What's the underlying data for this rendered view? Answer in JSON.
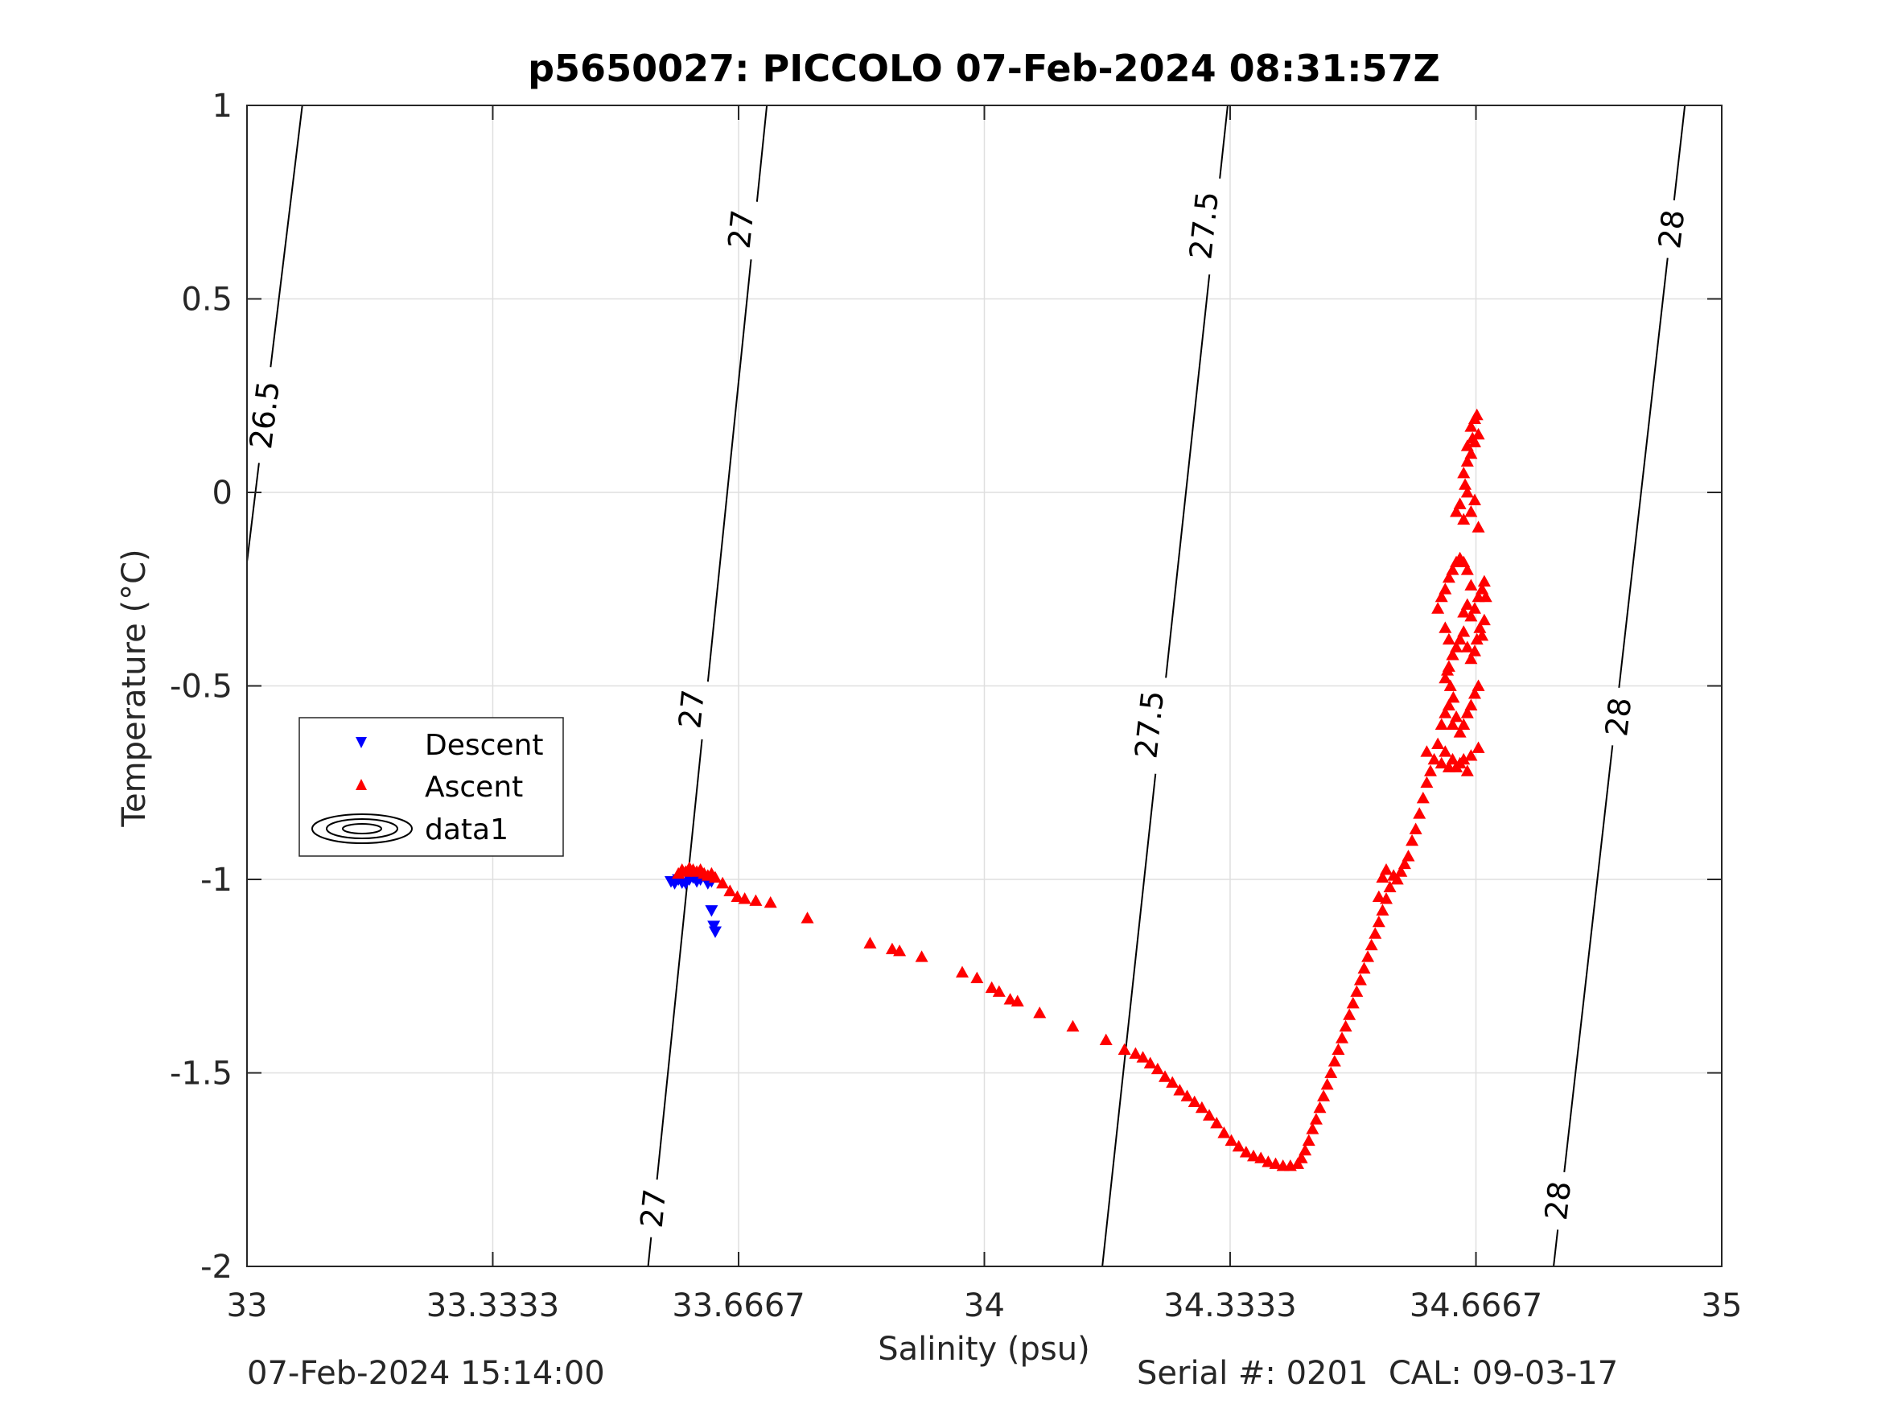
{
  "chart_data": {
    "type": "scatter",
    "title": "p5650027: PICCOLO 07-Feb-2024 08:31:57Z",
    "xlabel": "Salinity (psu)",
    "ylabel": "Temperature (°C)",
    "xlim": [
      33,
      35
    ],
    "ylim": [
      -2,
      1
    ],
    "xticks": [
      33,
      33.3333,
      33.6667,
      34,
      34.3333,
      34.6667,
      35
    ],
    "xtick_labels": [
      "33",
      "33.3333",
      "33.6667",
      "34",
      "34.3333",
      "34.6667",
      "35"
    ],
    "yticks": [
      -2,
      -1.5,
      -1,
      -0.5,
      0,
      0.5,
      1
    ],
    "ytick_labels": [
      "-2",
      "-1.5",
      "-1",
      "-0.5",
      "0",
      "0.5",
      "1"
    ],
    "grid": true,
    "legend_position": "middle-left",
    "legend": [
      "Descent",
      "Ascent",
      "data1"
    ],
    "contours": [
      {
        "level": "26.5",
        "points": [
          [
            33.0,
            -0.18
          ],
          [
            33.075,
            1.0
          ]
        ],
        "labels": [
          {
            "x": 33.024,
            "y": 0.2
          }
        ]
      },
      {
        "level": "27",
        "points": [
          [
            33.544,
            -2.0
          ],
          [
            33.705,
            1.0
          ]
        ],
        "labels": [
          {
            "x": 33.551,
            "y": -1.85
          },
          {
            "x": 33.603,
            "y": -0.56
          },
          {
            "x": 33.67,
            "y": 0.68
          }
        ]
      },
      {
        "level": "27.5",
        "points": [
          [
            34.16,
            -2.0
          ],
          [
            34.33,
            1.0
          ]
        ],
        "labels": [
          {
            "x": 34.224,
            "y": -0.6
          },
          {
            "x": 34.298,
            "y": 0.69
          }
        ]
      },
      {
        "level": "28",
        "points": [
          [
            34.772,
            -2.0
          ],
          [
            34.95,
            1.0
          ]
        ],
        "labels": [
          {
            "x": 34.778,
            "y": -1.83
          },
          {
            "x": 34.86,
            "y": -0.58
          },
          {
            "x": 34.932,
            "y": 0.68
          }
        ]
      }
    ],
    "series": [
      {
        "name": "Descent",
        "marker": "triangle-down",
        "color": "#0000ff",
        "points": [
          [
            33.575,
            -1.005
          ],
          [
            33.58,
            -1.01
          ],
          [
            33.585,
            -1.0
          ],
          [
            33.59,
            -1.008
          ],
          [
            33.595,
            -1.01
          ],
          [
            33.6,
            -1.0
          ],
          [
            33.605,
            -0.995
          ],
          [
            33.61,
            -1.005
          ],
          [
            33.615,
            -1.0
          ],
          [
            33.625,
            -1.01
          ],
          [
            33.63,
            -1.005
          ],
          [
            33.63,
            -1.08
          ],
          [
            33.633,
            -1.12
          ],
          [
            33.635,
            -1.135
          ]
        ]
      },
      {
        "name": "Ascent",
        "marker": "triangle-up",
        "color": "#ff0000",
        "points": [
          [
            33.585,
            -0.985
          ],
          [
            33.59,
            -0.975
          ],
          [
            33.595,
            -0.98
          ],
          [
            33.6,
            -0.97
          ],
          [
            33.605,
            -0.975
          ],
          [
            33.61,
            -0.98
          ],
          [
            33.615,
            -0.975
          ],
          [
            33.62,
            -0.985
          ],
          [
            33.625,
            -0.99
          ],
          [
            33.63,
            -0.985
          ],
          [
            33.635,
            -0.995
          ],
          [
            33.645,
            -1.01
          ],
          [
            33.655,
            -1.03
          ],
          [
            33.665,
            -1.045
          ],
          [
            33.675,
            -1.05
          ],
          [
            33.69,
            -1.055
          ],
          [
            33.71,
            -1.06
          ],
          [
            33.76,
            -1.1
          ],
          [
            33.845,
            -1.165
          ],
          [
            33.875,
            -1.18
          ],
          [
            33.885,
            -1.185
          ],
          [
            33.915,
            -1.2
          ],
          [
            33.97,
            -1.24
          ],
          [
            33.99,
            -1.255
          ],
          [
            34.01,
            -1.28
          ],
          [
            34.02,
            -1.29
          ],
          [
            34.035,
            -1.31
          ],
          [
            34.045,
            -1.315
          ],
          [
            34.075,
            -1.345
          ],
          [
            34.12,
            -1.38
          ],
          [
            34.165,
            -1.415
          ],
          [
            34.19,
            -1.44
          ],
          [
            34.205,
            -1.45
          ],
          [
            34.215,
            -1.46
          ],
          [
            34.225,
            -1.475
          ],
          [
            34.235,
            -1.49
          ],
          [
            34.245,
            -1.51
          ],
          [
            34.255,
            -1.525
          ],
          [
            34.265,
            -1.545
          ],
          [
            34.275,
            -1.56
          ],
          [
            34.285,
            -1.575
          ],
          [
            34.295,
            -1.59
          ],
          [
            34.305,
            -1.61
          ],
          [
            34.315,
            -1.63
          ],
          [
            34.325,
            -1.655
          ],
          [
            34.335,
            -1.675
          ],
          [
            34.345,
            -1.69
          ],
          [
            34.355,
            -1.705
          ],
          [
            34.365,
            -1.715
          ],
          [
            34.375,
            -1.72
          ],
          [
            34.385,
            -1.73
          ],
          [
            34.395,
            -1.735
          ],
          [
            34.405,
            -1.74
          ],
          [
            34.415,
            -1.74
          ],
          [
            34.425,
            -1.735
          ],
          [
            34.43,
            -1.72
          ],
          [
            34.435,
            -1.7
          ],
          [
            34.44,
            -1.675
          ],
          [
            34.445,
            -1.645
          ],
          [
            34.45,
            -1.62
          ],
          [
            34.455,
            -1.59
          ],
          [
            34.46,
            -1.56
          ],
          [
            34.465,
            -1.53
          ],
          [
            34.47,
            -1.5
          ],
          [
            34.475,
            -1.47
          ],
          [
            34.48,
            -1.44
          ],
          [
            34.485,
            -1.41
          ],
          [
            34.49,
            -1.38
          ],
          [
            34.495,
            -1.35
          ],
          [
            34.5,
            -1.32
          ],
          [
            34.505,
            -1.29
          ],
          [
            34.51,
            -1.26
          ],
          [
            34.515,
            -1.23
          ],
          [
            34.52,
            -1.2
          ],
          [
            34.525,
            -1.17
          ],
          [
            34.53,
            -1.14
          ],
          [
            34.535,
            -1.11
          ],
          [
            34.54,
            -1.08
          ],
          [
            34.545,
            -1.05
          ],
          [
            34.55,
            -1.02
          ],
          [
            34.555,
            -0.99
          ],
          [
            34.535,
            -1.045
          ],
          [
            34.54,
            -0.995
          ],
          [
            34.545,
            -0.975
          ],
          [
            34.56,
            -1.0
          ],
          [
            34.565,
            -0.98
          ],
          [
            34.57,
            -0.96
          ],
          [
            34.575,
            -0.94
          ],
          [
            34.58,
            -0.9
          ],
          [
            34.585,
            -0.87
          ],
          [
            34.59,
            -0.83
          ],
          [
            34.595,
            -0.79
          ],
          [
            34.6,
            -0.75
          ],
          [
            34.605,
            -0.72
          ],
          [
            34.61,
            -0.69
          ],
          [
            34.6,
            -0.67
          ],
          [
            34.615,
            -0.65
          ],
          [
            34.62,
            -0.7
          ],
          [
            34.625,
            -0.67
          ],
          [
            34.63,
            -0.71
          ],
          [
            34.635,
            -0.69
          ],
          [
            34.64,
            -0.71
          ],
          [
            34.645,
            -0.7
          ],
          [
            34.65,
            -0.69
          ],
          [
            34.655,
            -0.72
          ],
          [
            34.66,
            -0.68
          ],
          [
            34.67,
            -0.66
          ],
          [
            34.62,
            -0.6
          ],
          [
            34.625,
            -0.57
          ],
          [
            34.63,
            -0.55
          ],
          [
            34.635,
            -0.6
          ],
          [
            34.64,
            -0.58
          ],
          [
            34.645,
            -0.62
          ],
          [
            34.65,
            -0.6
          ],
          [
            34.655,
            -0.57
          ],
          [
            34.66,
            -0.55
          ],
          [
            34.665,
            -0.52
          ],
          [
            34.67,
            -0.5
          ],
          [
            34.625,
            -0.48
          ],
          [
            34.63,
            -0.45
          ],
          [
            34.635,
            -0.42
          ],
          [
            34.64,
            -0.4
          ],
          [
            34.645,
            -0.38
          ],
          [
            34.65,
            -0.36
          ],
          [
            34.655,
            -0.4
          ],
          [
            34.66,
            -0.43
          ],
          [
            34.665,
            -0.41
          ],
          [
            34.668,
            -0.38
          ],
          [
            34.672,
            -0.35
          ],
          [
            34.675,
            -0.37
          ],
          [
            34.678,
            -0.33
          ],
          [
            34.665,
            -0.3
          ],
          [
            34.67,
            -0.27
          ],
          [
            34.675,
            -0.25
          ],
          [
            34.678,
            -0.23
          ],
          [
            34.68,
            -0.27
          ],
          [
            34.66,
            -0.32
          ],
          [
            34.655,
            -0.29
          ],
          [
            34.65,
            -0.31
          ],
          [
            34.615,
            -0.3
          ],
          [
            34.62,
            -0.27
          ],
          [
            34.625,
            -0.25
          ],
          [
            34.63,
            -0.22
          ],
          [
            34.635,
            -0.2
          ],
          [
            34.64,
            -0.18
          ],
          [
            34.645,
            -0.17
          ],
          [
            34.65,
            -0.18
          ],
          [
            34.655,
            -0.2
          ],
          [
            34.66,
            -0.24
          ],
          [
            34.625,
            -0.35
          ],
          [
            34.63,
            -0.38
          ],
          [
            34.635,
            -0.42
          ],
          [
            34.628,
            -0.46
          ],
          [
            34.632,
            -0.5
          ],
          [
            34.636,
            -0.53
          ],
          [
            34.64,
            -0.05
          ],
          [
            34.645,
            -0.03
          ],
          [
            34.65,
            -0.07
          ],
          [
            34.655,
            0.0
          ],
          [
            34.66,
            -0.05
          ],
          [
            34.665,
            -0.02
          ],
          [
            34.67,
            -0.09
          ],
          [
            34.652,
            0.02
          ],
          [
            34.65,
            0.05
          ],
          [
            34.655,
            0.08
          ],
          [
            34.66,
            0.1
          ],
          [
            34.665,
            0.13
          ],
          [
            34.67,
            0.15
          ],
          [
            34.66,
            0.17
          ],
          [
            34.665,
            0.19
          ],
          [
            34.668,
            0.2
          ],
          [
            34.662,
            0.14
          ],
          [
            34.655,
            0.12
          ]
        ]
      }
    ]
  },
  "footer": {
    "left": "07-Feb-2024 15:14:00",
    "right": "Serial #: 0201  CAL: 09-03-17"
  }
}
